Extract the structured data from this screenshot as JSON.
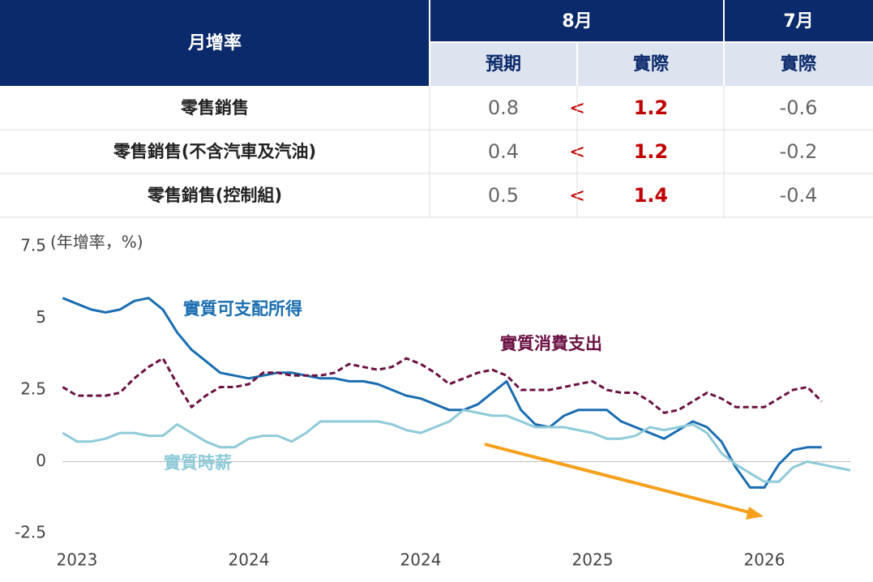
{
  "table": {
    "header": {
      "title": "月增率",
      "month_current": "8月",
      "month_prior": "7月",
      "expected": "預期",
      "actual": "實際",
      "actual_prior": "實際"
    },
    "rows": [
      [
        "零售銷售",
        "0.8",
        "<",
        "1.2",
        "-0.6"
      ],
      [
        "零售銷售(不含汽車及汽油)",
        "0.4",
        "<",
        "1.2",
        "-0.2"
      ],
      [
        "零售銷售(控制組)",
        "0.5",
        "<",
        "1.4",
        "-0.4"
      ]
    ]
  },
  "chart_data": {
    "type": "line",
    "y_unit_label": "(年增率，%)",
    "ylim": [
      -2.5,
      7.5
    ],
    "yticks": [
      7.5,
      5,
      2.5,
      0,
      -2.5
    ],
    "xlim": [
      -1,
      54
    ],
    "xticks": [
      {
        "value": 0,
        "label": "2023"
      },
      {
        "value": 12,
        "label": "2024"
      },
      {
        "value": 24,
        "label": "2024"
      },
      {
        "value": 36,
        "label": "2025"
      },
      {
        "value": 48,
        "label": "2026"
      }
    ],
    "zero_line": true,
    "x": [
      -1,
      0,
      1,
      2,
      3,
      4,
      5,
      6,
      7,
      8,
      9,
      10,
      11,
      12,
      13,
      14,
      15,
      16,
      17,
      18,
      19,
      20,
      21,
      22,
      23,
      24,
      25,
      26,
      27,
      28,
      29,
      30,
      31,
      32,
      33,
      34,
      35,
      36,
      37,
      38,
      39,
      40,
      41,
      42,
      43,
      44,
      45,
      46,
      47,
      48,
      49,
      50,
      51,
      52,
      53,
      54
    ],
    "series": [
      {
        "name": "實質可支配所得",
        "color": "#1a6db0",
        "dash": false,
        "values": [
          5.7,
          5.5,
          5.3,
          5.2,
          5.3,
          5.6,
          5.7,
          5.3,
          4.5,
          3.9,
          3.5,
          3.1,
          3.0,
          2.9,
          3.0,
          3.1,
          3.1,
          3.0,
          2.9,
          2.9,
          2.8,
          2.8,
          2.7,
          2.5,
          2.3,
          2.2,
          2.0,
          1.8,
          1.8,
          2.0,
          2.4,
          2.8,
          1.8,
          1.3,
          1.2,
          1.6,
          1.8,
          1.8,
          1.8,
          1.4,
          1.2,
          1.0,
          0.8,
          1.1,
          1.4,
          1.2,
          0.7,
          -0.2,
          -0.9,
          -0.9,
          -0.1,
          0.4,
          0.5,
          0.5,
          null,
          null
        ]
      },
      {
        "name": "實質消費支出",
        "color": "#6b1042",
        "dash": true,
        "values": [
          2.6,
          2.3,
          2.3,
          2.3,
          2.4,
          2.9,
          3.3,
          3.6,
          2.7,
          1.9,
          2.3,
          2.6,
          2.6,
          2.7,
          3.1,
          3.1,
          3.0,
          3.0,
          3.0,
          3.1,
          3.4,
          3.3,
          3.2,
          3.3,
          3.6,
          3.4,
          3.1,
          2.7,
          2.9,
          3.1,
          3.2,
          3.0,
          2.5,
          2.5,
          2.5,
          2.6,
          2.7,
          2.8,
          2.5,
          2.4,
          2.4,
          2.1,
          1.7,
          1.8,
          2.1,
          2.4,
          2.2,
          1.9,
          1.9,
          1.9,
          2.2,
          2.5,
          2.6,
          2.1,
          null,
          null
        ]
      },
      {
        "name": "實質時薪",
        "color": "#8ecad8",
        "dash": false,
        "values": [
          1.0,
          0.7,
          0.7,
          0.8,
          1.0,
          1.0,
          0.9,
          0.9,
          1.3,
          1.0,
          0.7,
          0.5,
          0.5,
          0.8,
          0.9,
          0.9,
          0.7,
          1.0,
          1.4,
          1.4,
          1.4,
          1.4,
          1.4,
          1.3,
          1.1,
          1.0,
          1.2,
          1.4,
          1.8,
          1.7,
          1.6,
          1.6,
          1.4,
          1.2,
          1.2,
          1.2,
          1.1,
          1.0,
          0.8,
          0.8,
          0.9,
          1.2,
          1.1,
          1.2,
          1.3,
          1.0,
          0.3,
          -0.1,
          -0.4,
          -0.7,
          -0.7,
          -0.2,
          0.0,
          -0.1,
          -0.2,
          -0.3
        ]
      }
    ]
  }
}
